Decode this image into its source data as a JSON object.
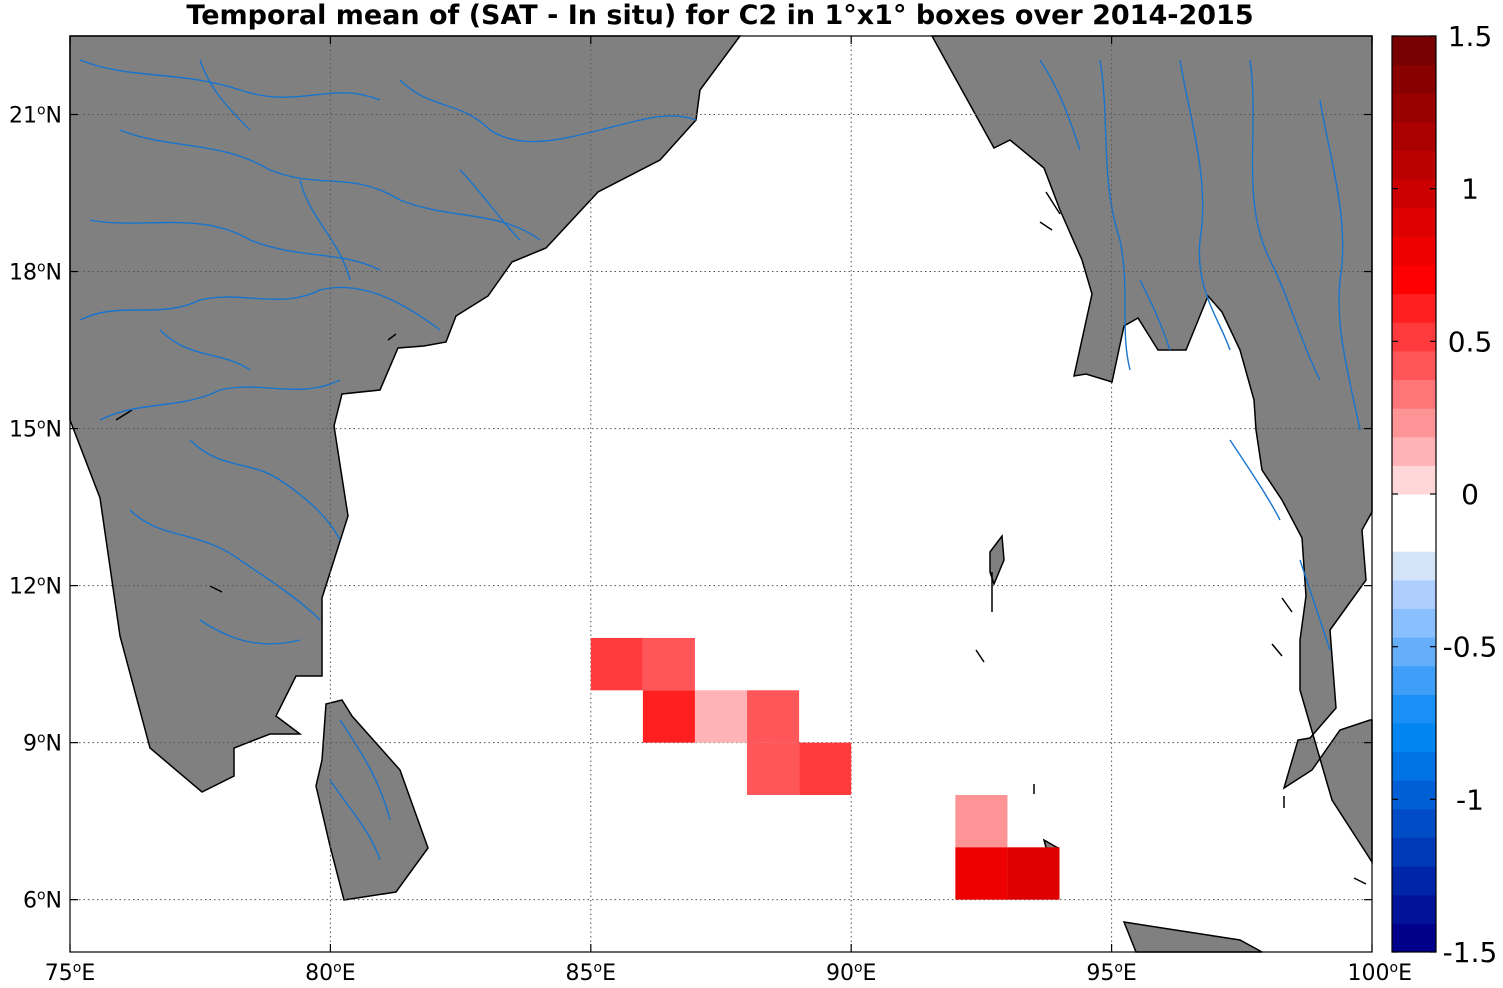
{
  "chart_data": {
    "type": "heatmap",
    "title": "Temporal mean of (SAT - In situ) for C2 in 1°x1° boxes over 2014-2015",
    "map": {
      "lon_range": [
        75,
        100
      ],
      "lat_range": [
        5,
        22.5
      ],
      "grid": true,
      "land_color": "#808080",
      "river_color": "#1874cd",
      "coastline_color": "#000000"
    },
    "x_ticks": [
      {
        "value": 75,
        "label": "75°E"
      },
      {
        "value": 80,
        "label": "80°E"
      },
      {
        "value": 85,
        "label": "85°E"
      },
      {
        "value": 90,
        "label": "90°E"
      },
      {
        "value": 95,
        "label": "95°E"
      },
      {
        "value": 100,
        "label": "100°E"
      }
    ],
    "y_ticks": [
      {
        "value": 6,
        "label": "6°N"
      },
      {
        "value": 9,
        "label": "9°N"
      },
      {
        "value": 12,
        "label": "12°N"
      },
      {
        "value": 15,
        "label": "15°N"
      },
      {
        "value": 18,
        "label": "18°N"
      },
      {
        "value": 21,
        "label": "21°N"
      }
    ],
    "cells": [
      {
        "lon": 85,
        "lat": 10,
        "value": 0.5
      },
      {
        "lon": 86,
        "lat": 10,
        "value": 0.4
      },
      {
        "lon": 86,
        "lat": 9,
        "value": 0.65
      },
      {
        "lon": 87,
        "lat": 9,
        "value": 0.15
      },
      {
        "lon": 88,
        "lat": 9,
        "value": 0.4
      },
      {
        "lon": 88,
        "lat": 8,
        "value": 0.4
      },
      {
        "lon": 89,
        "lat": 8,
        "value": 0.5
      },
      {
        "lon": 92,
        "lat": 7,
        "value": 0.25
      },
      {
        "lon": 92,
        "lat": 6,
        "value": 0.75
      },
      {
        "lon": 93,
        "lat": 6,
        "value": 0.85
      }
    ],
    "colorbar": {
      "range": [
        -1.5,
        1.5
      ],
      "ticks": [
        {
          "value": 1.5,
          "label": "1.5"
        },
        {
          "value": 1,
          "label": "1"
        },
        {
          "value": 0.5,
          "label": "0.5"
        },
        {
          "value": 0,
          "label": "0"
        },
        {
          "value": -0.5,
          "label": "-0.5"
        },
        {
          "value": -1,
          "label": "-1"
        },
        {
          "value": -1.5,
          "label": "-1.5"
        }
      ],
      "colors": [
        "#00008b",
        "#001399",
        "#0026a8",
        "#0039b7",
        "#004cc6",
        "#005fd5",
        "#0072e4",
        "#0085f3",
        "#1a8ff5",
        "#3f9ef7",
        "#64aefa",
        "#89beff",
        "#aeceff",
        "#d3e4f9",
        "#ffffff",
        "#ffffff",
        "#ffd7d9",
        "#ffb3b6",
        "#ff9497",
        "#ff7578",
        "#ff5659",
        "#ff3a3d",
        "#ff1e20",
        "#ff0000",
        "#ee0000",
        "#dd0000",
        "#cc0000",
        "#bb0000",
        "#aa0000",
        "#990000",
        "#880000",
        "#770000"
      ]
    }
  }
}
